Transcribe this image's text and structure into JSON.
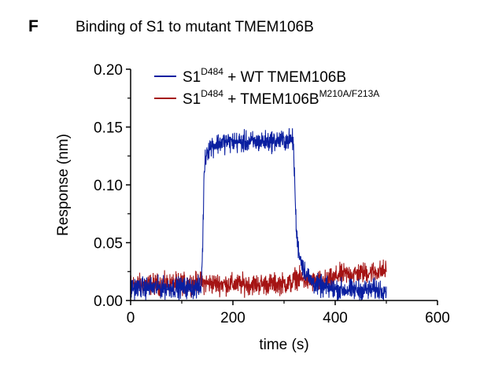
{
  "panel_label": "F",
  "chart_data": {
    "type": "line",
    "title": "Binding of S1 to mutant TMEM106B",
    "xlabel": "time (s)",
    "ylabel": "Response (nm)",
    "xlim": [
      0,
      600
    ],
    "ylim": [
      0,
      0.2
    ],
    "x_ticks": [
      0,
      200,
      400,
      600
    ],
    "y_ticks": [
      0.0,
      0.05,
      0.1,
      0.15,
      0.2
    ],
    "x_tick_labels": [
      "0",
      "200",
      "400",
      "600"
    ],
    "y_tick_labels": [
      "0.00",
      "0.05",
      "0.10",
      "0.15",
      "0.20"
    ],
    "legend_position": "top",
    "series": [
      {
        "name": "S1 D484 + WT TMEM106B",
        "legend_main": "S1",
        "legend_sup": "D484",
        "legend_rest": " + WT TMEM106B",
        "legend_sup2": "",
        "color": "#0a1fa0",
        "noise": 0.0045,
        "x": [
          0,
          138,
          141,
          144,
          148,
          155,
          165,
          180,
          200,
          240,
          280,
          318,
          321,
          324,
          328,
          332,
          338,
          345,
          355,
          365,
          380,
          400,
          430,
          460,
          500
        ],
        "y": [
          0.011,
          0.011,
          0.05,
          0.115,
          0.128,
          0.133,
          0.135,
          0.137,
          0.137,
          0.137,
          0.138,
          0.139,
          0.1,
          0.06,
          0.045,
          0.036,
          0.028,
          0.022,
          0.016,
          0.013,
          0.011,
          0.01,
          0.009,
          0.009,
          0.01
        ]
      },
      {
        "name": "S1 D484 + TMEM106B M210A/F213A",
        "legend_main": "S1",
        "legend_sup": "D484",
        "legend_rest": " + TMEM106B",
        "legend_sup2": "M210A/F213A",
        "color": "#a51414",
        "noise": 0.0045,
        "x": [
          0,
          60,
          120,
          138,
          142,
          200,
          260,
          316,
          322,
          330,
          345,
          360,
          380,
          395,
          405,
          430,
          460,
          500
        ],
        "y": [
          0.014,
          0.014,
          0.015,
          0.016,
          0.015,
          0.014,
          0.014,
          0.015,
          0.02,
          0.019,
          0.017,
          0.016,
          0.017,
          0.018,
          0.022,
          0.023,
          0.024,
          0.026
        ]
      }
    ]
  }
}
